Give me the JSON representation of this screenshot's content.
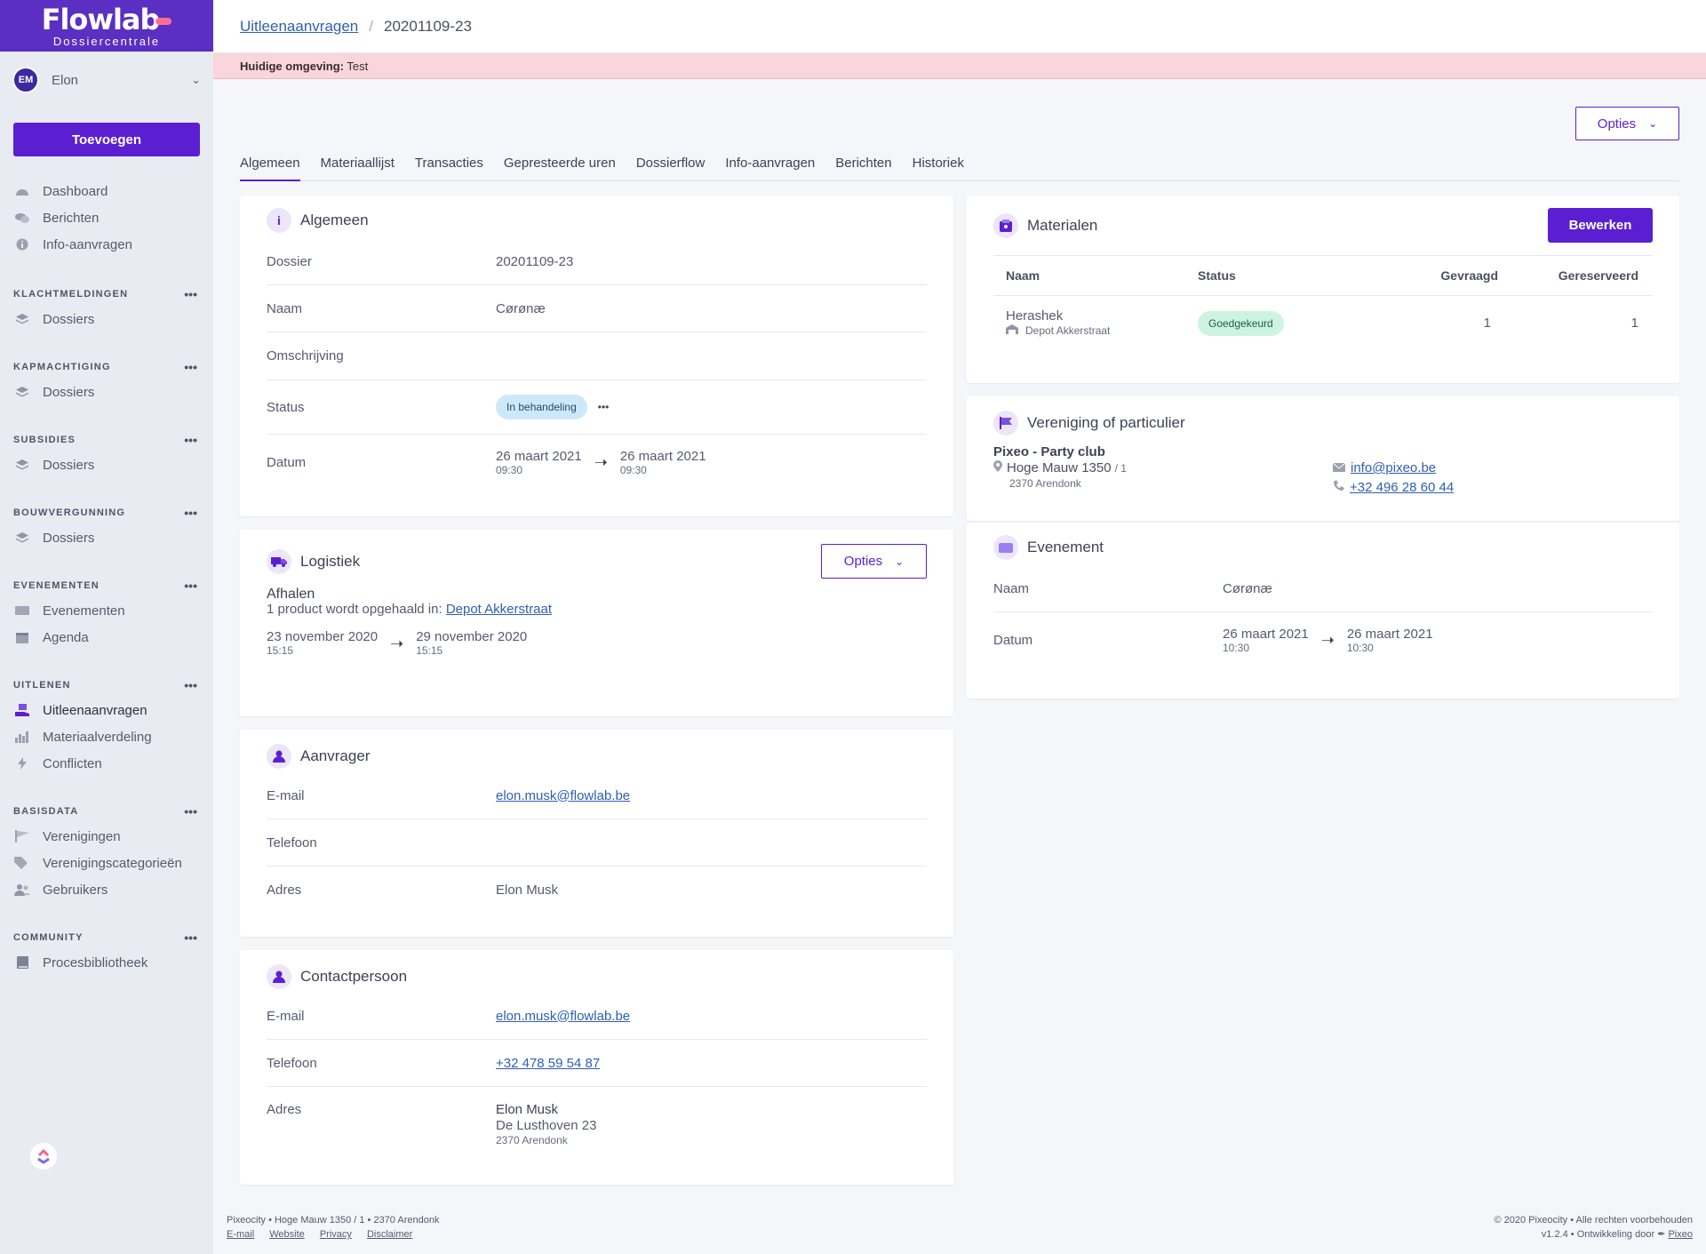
{
  "brand": {
    "name": "Flowlab",
    "subtitle": "Dossiercentrale"
  },
  "user": {
    "initials": "EM",
    "name": "Elon"
  },
  "sidebar": {
    "add_label": "Toevoegen",
    "top_items": [
      {
        "label": "Dashboard",
        "icon": "dashboard-icon"
      },
      {
        "label": "Berichten",
        "icon": "chat-icon"
      },
      {
        "label": "Info-aanvragen",
        "icon": "info-icon"
      }
    ],
    "sections": [
      {
        "title": "KLACHTMELDINGEN",
        "items": [
          {
            "label": "Dossiers"
          }
        ]
      },
      {
        "title": "KAPMACHTIGING",
        "items": [
          {
            "label": "Dossiers"
          }
        ]
      },
      {
        "title": "SUBSIDIES",
        "items": [
          {
            "label": "Dossiers"
          }
        ]
      },
      {
        "title": "BOUWVERGUNNING",
        "items": [
          {
            "label": "Dossiers"
          }
        ]
      },
      {
        "title": "EVENEMENTEN",
        "items": [
          {
            "label": "Evenementen"
          },
          {
            "label": "Agenda"
          }
        ]
      },
      {
        "title": "UITLENEN",
        "items": [
          {
            "label": "Uitleenaanvragen"
          },
          {
            "label": "Materiaalverdeling"
          },
          {
            "label": "Conflicten"
          }
        ]
      },
      {
        "title": "BASISDATA",
        "items": [
          {
            "label": "Verenigingen"
          },
          {
            "label": "Verenigingscategorieën"
          },
          {
            "label": "Gebruikers"
          }
        ]
      },
      {
        "title": "COMMUNITY",
        "items": [
          {
            "label": "Procesbibliotheek"
          }
        ]
      }
    ]
  },
  "breadcrumb": {
    "parent": "Uitleenaanvragen",
    "current": "20201109-23"
  },
  "env": {
    "label": "Huidige omgeving:",
    "value": "Test"
  },
  "opties_label": "Opties",
  "tabs": [
    "Algemeen",
    "Materiaallijst",
    "Transacties",
    "Gepresteerde uren",
    "Dossierflow",
    "Info-aanvragen",
    "Berichten",
    "Historiek"
  ],
  "algemeen": {
    "title": "Algemeen",
    "dossier_label": "Dossier",
    "dossier": "20201109-23",
    "naam_label": "Naam",
    "naam": "Cørønæ",
    "omschrijving_label": "Omschrijving",
    "status_label": "Status",
    "status": "In behandeling",
    "datum_label": "Datum",
    "start_date": "26 maart 2021",
    "start_time": "09:30",
    "end_date": "26 maart 2021",
    "end_time": "09:30"
  },
  "logistiek": {
    "title": "Logistiek",
    "opties": "Opties",
    "heading": "Afhalen",
    "desc": "1 product wordt opgehaald in:",
    "location": "Depot Akkerstraat",
    "start_date": "23 november 2020",
    "start_time": "15:15",
    "end_date": "29 november 2020",
    "end_time": "15:15"
  },
  "aanvrager": {
    "title": "Aanvrager",
    "email_label": "E-mail",
    "email": "elon.musk@flowlab.be",
    "tel_label": "Telefoon",
    "adres_label": "Adres",
    "adres": "Elon Musk"
  },
  "contact": {
    "title": "Contactpersoon",
    "email_label": "E-mail",
    "email": "elon.musk@flowlab.be",
    "tel_label": "Telefoon",
    "tel": "+32 478 59 54 87",
    "adres_label": "Adres",
    "adres_name": "Elon Musk",
    "adres_street": "De Lusthoven 23",
    "adres_city": "2370 Arendonk"
  },
  "materialen": {
    "title": "Materialen",
    "edit": "Bewerken",
    "headers": [
      "Naam",
      "Status",
      "Gevraagd",
      "Gereserveerd"
    ],
    "rows": [
      {
        "name": "Herashek",
        "location": "Depot Akkerstraat",
        "status": "Goedgekeurd",
        "requested": "1",
        "reserved": "1"
      }
    ]
  },
  "vereniging": {
    "title": "Vereniging of particulier",
    "name": "Pixeo - Party club",
    "street": "Hoge Mauw 1350",
    "bus": "/ 1",
    "city": "2370 Arendonk",
    "email": "info@pixeo.be",
    "phone": "+32 496 28 60 44"
  },
  "evenement": {
    "title": "Evenement",
    "naam_label": "Naam",
    "naam": "Cørønæ",
    "datum_label": "Datum",
    "start_date": "26 maart 2021",
    "start_time": "10:30",
    "end_date": "26 maart 2021",
    "end_time": "10:30"
  },
  "footer": {
    "address": "Pixeocity • Hoge Mauw 1350 / 1 • 2370 Arendonk",
    "links": [
      "E-mail",
      "Website",
      "Privacy",
      "Disclaimer"
    ],
    "copyright": "© 2020 Pixeocity • Alle rechten voorbehouden",
    "version": "v1.2.4 • Ontwikkeling door",
    "dev": "Pixeo"
  },
  "colors": {
    "primary": "#5b1fd1",
    "brand": "#5b2fc1",
    "env_bg": "#f9d6dc"
  }
}
